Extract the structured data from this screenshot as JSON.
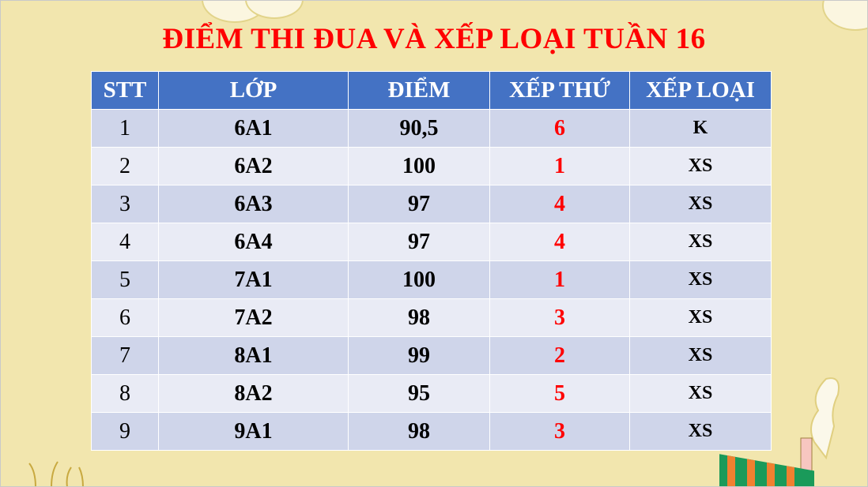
{
  "title": "ĐIỂM THI ĐUA VÀ XẾP LOẠI TUẦN 16",
  "table": {
    "headers": [
      "STT",
      "LỚP",
      "ĐIỂM",
      "XẾP THỨ",
      "XẾP LOẠI"
    ],
    "rows": [
      [
        "1",
        "6A1",
        "90,5",
        "6",
        "K"
      ],
      [
        "2",
        "6A2",
        "100",
        "1",
        "XS"
      ],
      [
        "3",
        "6A3",
        "97",
        "4",
        "XS"
      ],
      [
        "4",
        "6A4",
        "97",
        "4",
        "XS"
      ],
      [
        "5",
        "7A1",
        "100",
        "1",
        "XS"
      ],
      [
        "6",
        "7A2",
        "98",
        "3",
        "XS"
      ],
      [
        "7",
        "8A1",
        "99",
        "2",
        "XS"
      ],
      [
        "8",
        "8A2",
        "95",
        "5",
        "XS"
      ],
      [
        "9",
        "9A1",
        "98",
        "3",
        "XS"
      ]
    ]
  },
  "colors": {
    "title": "#ff0000",
    "header": "#4472c4",
    "row_odd": "#cfd5ea",
    "row_even": "#e9ebf5",
    "rank": "#ff0000",
    "background": "#f2e6ae"
  }
}
